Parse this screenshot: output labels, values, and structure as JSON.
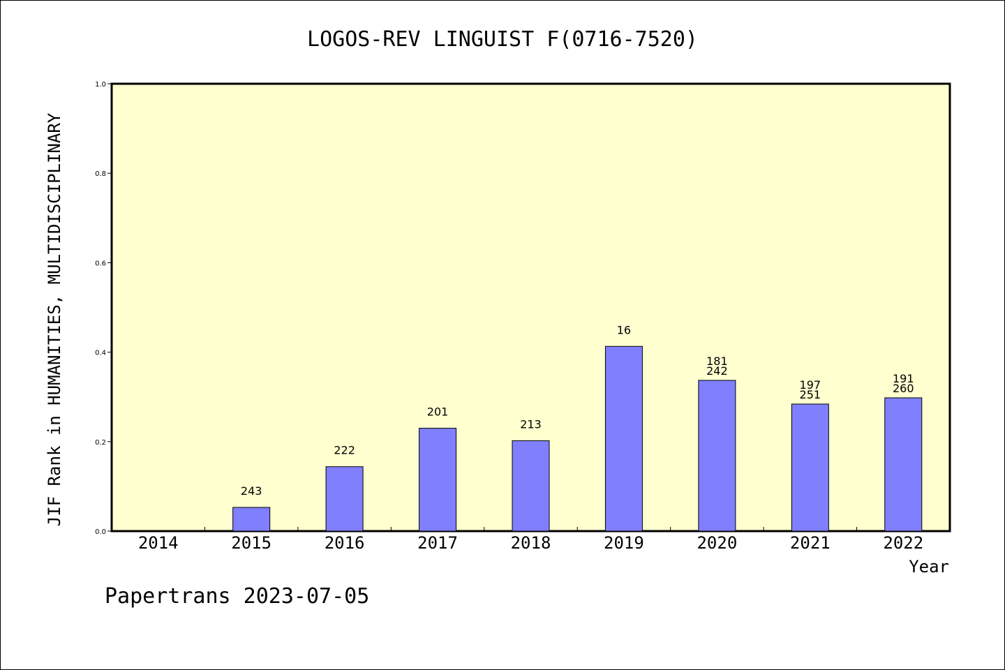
{
  "chart_data": {
    "type": "bar",
    "title": "LOGOS-REV LINGUIST F(0716-7520)",
    "xlabel": "Year",
    "ylabel": "JIF Rank in HUMANITIES, MULTIDISCIPLINARY",
    "footer": "Papertrans 2023-07-05",
    "categories": [
      "2014",
      "2015",
      "2016",
      "2017",
      "2018",
      "2019",
      "2020",
      "2021",
      "2022"
    ],
    "values": [
      null,
      0.053,
      0.144,
      0.23,
      0.202,
      0.413,
      0.337,
      0.284,
      0.298
    ],
    "annotations": [
      [],
      [
        "243"
      ],
      [
        "222"
      ],
      [
        "201"
      ],
      [
        "213"
      ],
      [
        "16"
      ],
      [
        "181",
        "242"
      ],
      [
        "197",
        "251"
      ],
      [
        "191",
        "260"
      ]
    ],
    "ylim": [
      0,
      1.0
    ],
    "yticks": [
      "0.0",
      "0.2",
      "0.4",
      "0.6",
      "0.8",
      "1.0"
    ],
    "colors": {
      "plot_bg": "#ffffd0",
      "bar": "#8080ff",
      "axis": "#000000"
    },
    "grid": false,
    "legend": "none"
  }
}
